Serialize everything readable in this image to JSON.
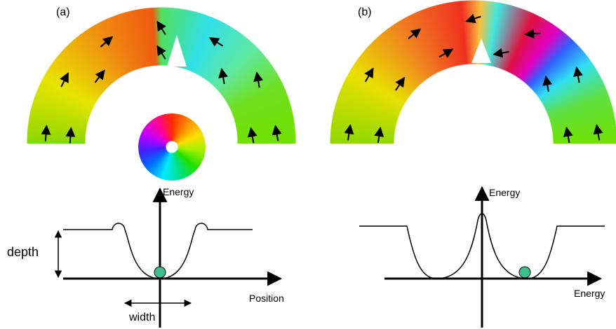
{
  "panels": [
    {
      "label": "(a)",
      "y_axis": "Energy",
      "x_axis": "Position",
      "depth_label": "depth",
      "width_label": "width"
    },
    {
      "label": "(b)",
      "y_axis": "Energy",
      "x_axis": "Energy"
    }
  ]
}
